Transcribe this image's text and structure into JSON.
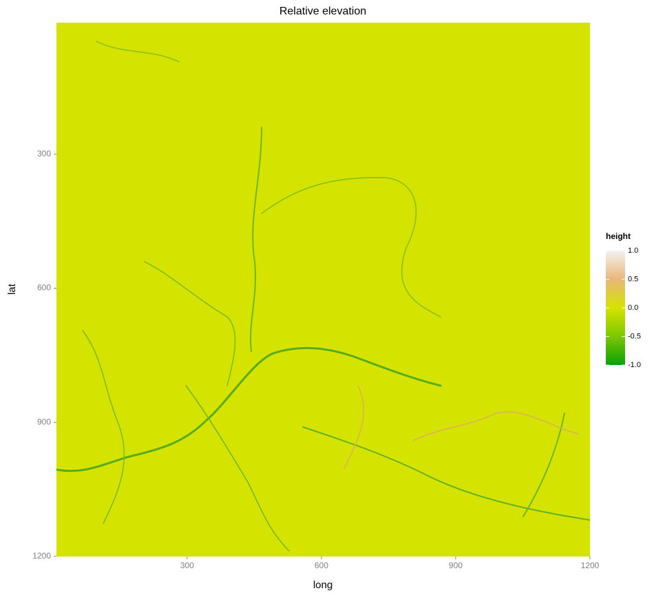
{
  "chart_data": {
    "type": "raster",
    "title": "Relative elevation",
    "x_label": "long",
    "y_label": "lat",
    "xlim": [
      8,
      1200
    ],
    "xticks": [
      300,
      600,
      900,
      1200
    ],
    "ylim": [
      6,
      1200
    ],
    "yticks": [
      300,
      600,
      900,
      1200
    ],
    "y_reversed": true,
    "legend_title": "height",
    "clim": [
      -1,
      1
    ],
    "colors": [
      "#0aa00a",
      "#7cc800",
      "#d5e300",
      "#e8b77a",
      "#f2f2f2"
    ],
    "legend_ticks": [
      {
        "value": 1,
        "label": "1.0"
      },
      {
        "value": 0.5,
        "label": "0.5"
      },
      {
        "value": 0,
        "label": "0.0"
      },
      {
        "value": -0.5,
        "label": "-0.5"
      },
      {
        "value": -1,
        "label": "-1.0"
      }
    ]
  }
}
